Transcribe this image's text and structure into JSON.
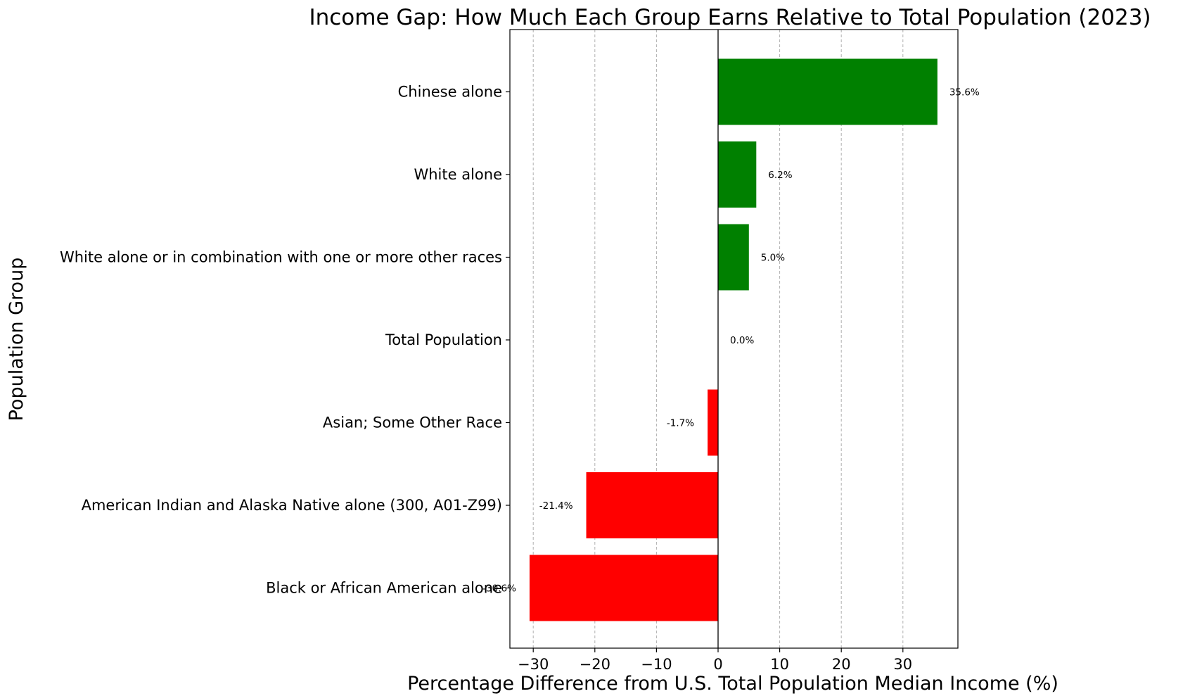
{
  "chart_data": {
    "type": "bar",
    "orientation": "horizontal",
    "title": "Income Gap: How Much Each Group Earns Relative to Total Population (2023)",
    "xlabel": "Percentage Difference from U.S. Total Population Median Income (%)",
    "ylabel": "Population Group",
    "xlim": [
      -33.9,
      38.9
    ],
    "xticks": [
      -30,
      -20,
      -10,
      0,
      10,
      20,
      30
    ],
    "xtick_labels": [
      "−30",
      "−20",
      "−10",
      "0",
      "10",
      "20",
      "30"
    ],
    "grid": "x, dashed",
    "categories": [
      "Chinese alone",
      "White alone",
      "White alone or in combination with one or more other races",
      "Total Population",
      "Asian; Some Other Race",
      "American Indian and Alaska Native alone (300, A01-Z99)",
      "Black or African American alone"
    ],
    "values": [
      35.6,
      6.2,
      5.0,
      0.0,
      -1.7,
      -21.4,
      -30.6
    ],
    "value_labels": [
      "35.6%",
      "6.2%",
      "5.0%",
      "0.0%",
      "-1.7%",
      "-21.4%",
      "-30.6%"
    ],
    "colors": {
      "positive": "#008000",
      "negative": "#ff0000",
      "zero_line": "#000000",
      "grid": "#b0b0b0"
    }
  }
}
